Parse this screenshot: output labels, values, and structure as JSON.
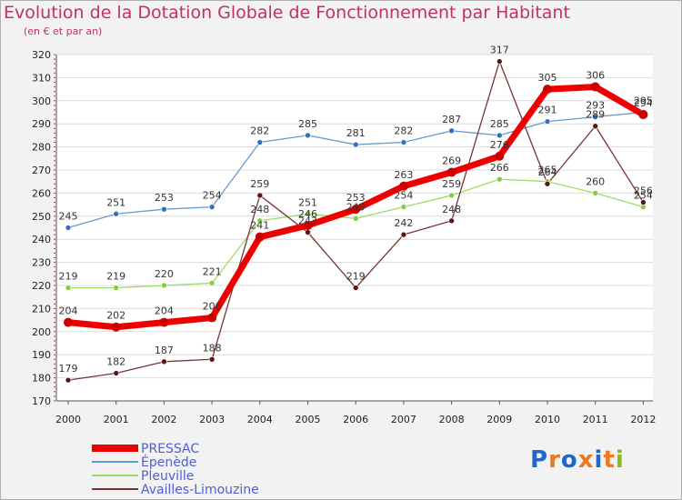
{
  "chart_data": {
    "type": "line",
    "title": "Evolution de la Dotation Globale de Fonctionnement par Habitant",
    "subtitle": "(en € et par an)",
    "xlabel": "",
    "ylabel": "",
    "x": [
      "2000",
      "2001",
      "2002",
      "2003",
      "2004",
      "2005",
      "2006",
      "2007",
      "2008",
      "2009",
      "2010",
      "2011",
      "2012"
    ],
    "ylim": [
      170,
      320
    ],
    "yticks": [
      170,
      180,
      190,
      200,
      210,
      220,
      230,
      240,
      250,
      260,
      270,
      280,
      290,
      300,
      310,
      320
    ],
    "grid": "horizontal",
    "legend_position": "bottom-left",
    "series": [
      {
        "name": "PRESSAC",
        "color": "#ee0000",
        "values": [
          204,
          202,
          204,
          206,
          241,
          246,
          253,
          263,
          269,
          276,
          305,
          306,
          294
        ]
      },
      {
        "name": "Épenède",
        "color": "#6699cc",
        "values": [
          245,
          251,
          253,
          254,
          282,
          285,
          281,
          282,
          287,
          285,
          291,
          293,
          295
        ]
      },
      {
        "name": "Pleuville",
        "color": "#99dd66",
        "values": [
          219,
          219,
          220,
          221,
          248,
          251,
          249,
          254,
          259,
          266,
          265,
          260,
          254
        ]
      },
      {
        "name": "Availles-Limouzine",
        "color": "#773333",
        "values": [
          179,
          182,
          187,
          188,
          259,
          243,
          219,
          242,
          248,
          317,
          264,
          289,
          256
        ]
      }
    ]
  },
  "logo": {
    "text": "Proxiti",
    "colors": [
      "#2266cc",
      "#ee7722",
      "#2266cc",
      "#ee7722",
      "#2266cc",
      "#ee7722",
      "#88bb22"
    ]
  }
}
